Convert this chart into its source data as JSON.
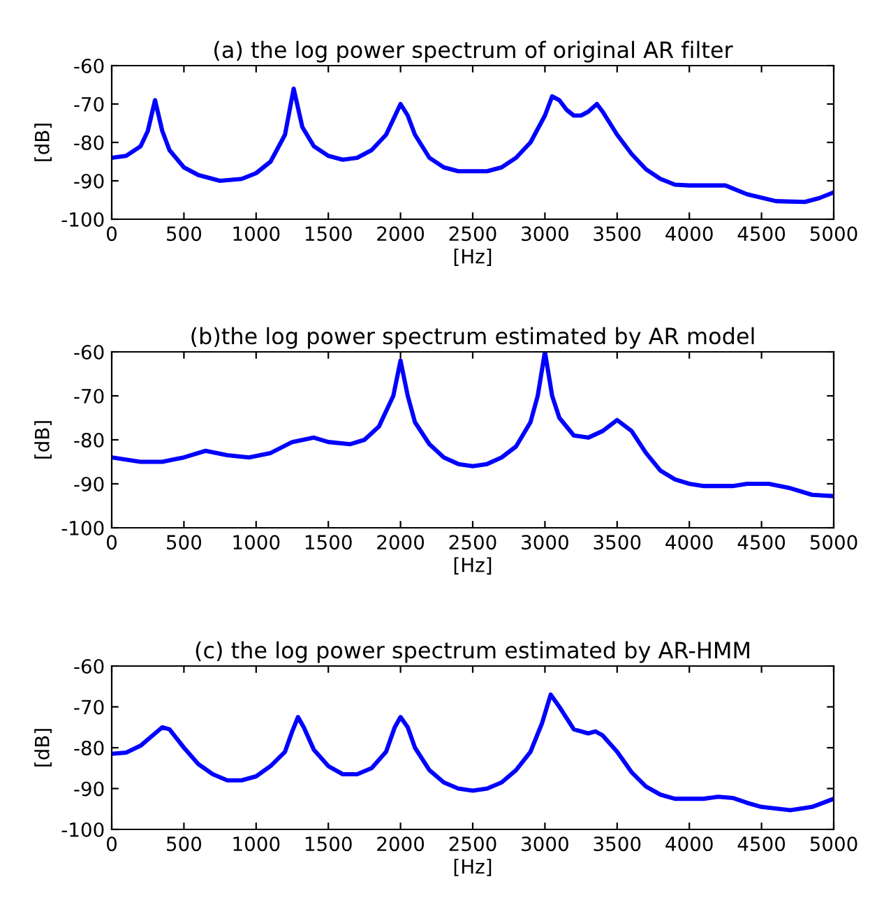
{
  "chart_data": [
    {
      "type": "line",
      "title": "(a) the log power spectrum of original AR filter",
      "xlabel": "[Hz]",
      "ylabel": "[dB]",
      "xlim": [
        0,
        5000
      ],
      "ylim": [
        -100,
        -60
      ],
      "xticks": [
        0,
        500,
        1000,
        1500,
        2000,
        2500,
        3000,
        3500,
        4000,
        4500,
        5000
      ],
      "yticks": [
        -100,
        -90,
        -80,
        -70,
        -60
      ],
      "grid": false,
      "series": [
        {
          "color": "#0000ff",
          "x": [
            0,
            100,
            200,
            250,
            300,
            350,
            400,
            500,
            600,
            750,
            900,
            1000,
            1100,
            1200,
            1260,
            1320,
            1400,
            1500,
            1600,
            1700,
            1800,
            1900,
            1950,
            2000,
            2050,
            2100,
            2200,
            2300,
            2400,
            2600,
            2700,
            2800,
            2900,
            3000,
            3050,
            3100,
            3150,
            3200,
            3250,
            3300,
            3360,
            3400,
            3500,
            3600,
            3700,
            3800,
            3900,
            4000,
            4250,
            4400,
            4600,
            4800,
            4900,
            5000
          ],
          "values": [
            -84,
            -83.5,
            -81,
            -77,
            -69,
            -77,
            -82,
            -86.5,
            -88.5,
            -90,
            -89.5,
            -88,
            -85,
            -78,
            -66,
            -76,
            -81,
            -83.5,
            -84.5,
            -84,
            -82,
            -78,
            -74,
            -70,
            -73,
            -78,
            -84,
            -86.5,
            -87.5,
            -87.5,
            -86.5,
            -84,
            -80,
            -73,
            -68,
            -69,
            -71.5,
            -73,
            -73,
            -72,
            -70,
            -72,
            -78,
            -83,
            -87,
            -89.5,
            -91,
            -91.2,
            -91.2,
            -93.5,
            -95.3,
            -95.5,
            -94.5,
            -93
          ]
        }
      ]
    },
    {
      "type": "line",
      "title": "(b)the log power spectrum estimated by AR model",
      "xlabel": "[Hz]",
      "ylabel": "[dB]",
      "xlim": [
        0,
        5000
      ],
      "ylim": [
        -100,
        -60
      ],
      "xticks": [
        0,
        500,
        1000,
        1500,
        2000,
        2500,
        3000,
        3500,
        4000,
        4500,
        5000
      ],
      "yticks": [
        -100,
        -90,
        -80,
        -70,
        -60
      ],
      "grid": false,
      "series": [
        {
          "color": "#0000ff",
          "x": [
            0,
            200,
            350,
            500,
            650,
            800,
            950,
            1100,
            1250,
            1400,
            1500,
            1650,
            1750,
            1850,
            1950,
            2000,
            2050,
            2100,
            2200,
            2300,
            2400,
            2500,
            2600,
            2700,
            2800,
            2900,
            2950,
            3000,
            3050,
            3100,
            3200,
            3300,
            3400,
            3500,
            3600,
            3700,
            3800,
            3900,
            4000,
            4100,
            4300,
            4400,
            4550,
            4700,
            4850,
            5000
          ],
          "values": [
            -84,
            -85,
            -85,
            -84,
            -82.5,
            -83.5,
            -84,
            -83,
            -80.5,
            -79.5,
            -80.5,
            -81,
            -80,
            -77,
            -70,
            -62,
            -70,
            -76,
            -81,
            -84,
            -85.5,
            -86,
            -85.5,
            -84,
            -81.5,
            -76,
            -70,
            -60,
            -70,
            -75,
            -79,
            -79.5,
            -78,
            -75.5,
            -78,
            -83,
            -87,
            -89,
            -90,
            -90.5,
            -90.5,
            -90,
            -90,
            -91,
            -92.5,
            -92.8
          ]
        }
      ]
    },
    {
      "type": "line",
      "title": "(c) the log power spectrum estimated by AR-HMM",
      "xlabel": "[Hz]",
      "ylabel": "[dB]",
      "xlim": [
        0,
        5000
      ],
      "ylim": [
        -100,
        -60
      ],
      "xticks": [
        0,
        500,
        1000,
        1500,
        2000,
        2500,
        3000,
        3500,
        4000,
        4500,
        5000
      ],
      "yticks": [
        -100,
        -90,
        -80,
        -70,
        -60
      ],
      "grid": false,
      "series": [
        {
          "color": "#0000ff",
          "x": [
            0,
            100,
            200,
            300,
            350,
            400,
            500,
            600,
            700,
            800,
            900,
            1000,
            1100,
            1200,
            1250,
            1290,
            1330,
            1400,
            1500,
            1600,
            1700,
            1800,
            1900,
            1960,
            2000,
            2050,
            2100,
            2200,
            2300,
            2400,
            2500,
            2600,
            2700,
            2800,
            2900,
            2980,
            3040,
            3100,
            3200,
            3300,
            3350,
            3400,
            3500,
            3600,
            3700,
            3800,
            3900,
            4000,
            4100,
            4200,
            4300,
            4400,
            4500,
            4700,
            4850,
            5000
          ],
          "values": [
            -81.5,
            -81.2,
            -79.5,
            -76.5,
            -75,
            -75.5,
            -80,
            -84,
            -86.5,
            -88,
            -88,
            -87,
            -84.5,
            -81,
            -76,
            -72.5,
            -75,
            -80.5,
            -84.5,
            -86.5,
            -86.5,
            -85,
            -81,
            -75,
            -72.5,
            -75,
            -80,
            -85.5,
            -88.5,
            -90,
            -90.5,
            -90,
            -88.5,
            -85.5,
            -81,
            -74,
            -67,
            -70,
            -75.5,
            -76.5,
            -76,
            -77,
            -81,
            -86,
            -89.5,
            -91.5,
            -92.5,
            -92.5,
            -92.5,
            -92,
            -92.3,
            -93.5,
            -94.5,
            -95.3,
            -94.5,
            -92.5
          ]
        }
      ]
    }
  ]
}
